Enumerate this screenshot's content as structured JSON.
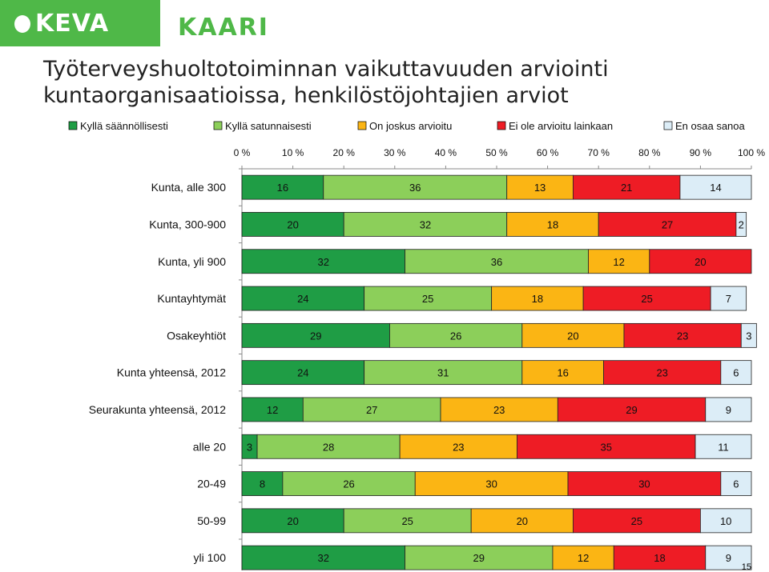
{
  "logos": {
    "keva": "KEVA",
    "kaari": "KAARI"
  },
  "title": "Työterveyshuoltotoiminnan vaikuttavuuden arviointi kuntaorganisaatioissa, henkilöstöjohtajien arviot",
  "page_number": "15",
  "chart_data": {
    "type": "bar",
    "orientation": "horizontal",
    "stacked": true,
    "percent": true,
    "legend_position": "top",
    "xlim": [
      0,
      100
    ],
    "x_ticks": [
      "0 %",
      "10 %",
      "20 %",
      "30 %",
      "40 %",
      "50 %",
      "60 %",
      "70 %",
      "80 %",
      "90 %",
      "100 %"
    ],
    "categories": [
      "Kunta, alle 300",
      "Kunta, 300-900",
      "Kunta, yli 900",
      "Kuntayhtymät",
      "Osakeyhtiöt",
      "Kunta yhteensä, 2012",
      "Seurakunta yhteensä, 2012",
      "alle 20",
      "20-49",
      "50-99",
      "yli 100"
    ],
    "series": [
      {
        "name": "Kyllä säännöllisesti",
        "color": "#1f9d45",
        "values": [
          16,
          20,
          32,
          24,
          29,
          24,
          12,
          3,
          8,
          20,
          32
        ]
      },
      {
        "name": "Kyllä satunnaisesti",
        "color": "#8ccf5a",
        "values": [
          36,
          32,
          36,
          25,
          26,
          31,
          27,
          28,
          26,
          25,
          29
        ]
      },
      {
        "name": "On joskus arvioitu",
        "color": "#fbb514",
        "values": [
          13,
          18,
          12,
          18,
          20,
          16,
          23,
          23,
          30,
          20,
          12
        ]
      },
      {
        "name": "Ei ole arvioitu lainkaan",
        "color": "#ee1c25",
        "values": [
          21,
          27,
          20,
          25,
          23,
          23,
          29,
          35,
          30,
          25,
          18
        ]
      },
      {
        "name": "En osaa sanoa",
        "color": "#dcedf7",
        "values": [
          14,
          2,
          null,
          7,
          3,
          6,
          9,
          11,
          6,
          10,
          9
        ]
      }
    ]
  }
}
